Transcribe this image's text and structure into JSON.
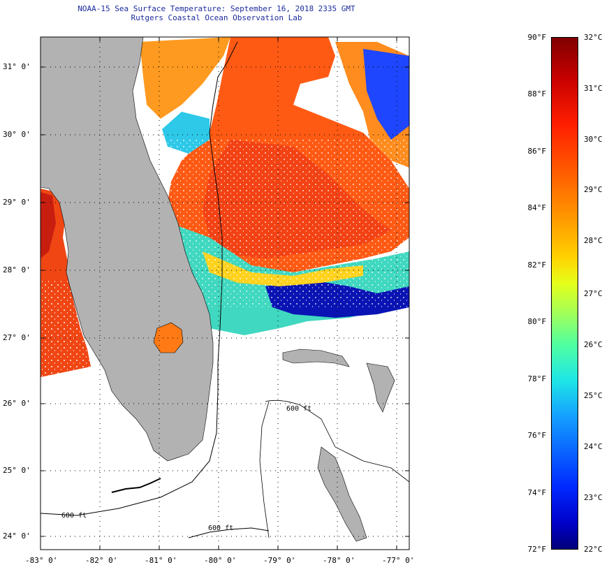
{
  "header": {
    "line1": "NOAA-15 Sea Surface Temperature:  September 16, 2018 2335 GMT",
    "line2": "Rutgers Coastal Ocean Observation Lab"
  },
  "map": {
    "lat_labels": [
      "31° 0'",
      "30° 0'",
      "29° 0'",
      "28° 0'",
      "27° 0'",
      "26° 0'",
      "25° 0'",
      "24° 0'"
    ],
    "lon_labels": [
      "-83° 0'",
      "-82° 0'",
      "-81° 0'",
      "-80° 0'",
      "-79° 0'",
      "-78° 0'",
      "-77° 0'"
    ],
    "contour_labels": [
      "600 ft",
      "600 ft",
      "600 ft"
    ],
    "colors": {
      "land": "#b2b2b2",
      "warm": "#ff5a14",
      "hot": "#e81a10",
      "cool": "#1e46ff",
      "cold": "#0a14b4",
      "mid": "#40e0d0"
    }
  },
  "colorbar": {
    "fahrenheit": [
      "90°F",
      "88°F",
      "86°F",
      "84°F",
      "82°F",
      "80°F",
      "78°F",
      "76°F",
      "74°F",
      "72°F"
    ],
    "celsius": [
      "32°C",
      "31°C",
      "30°C",
      "29°C",
      "28°C",
      "27°C",
      "26°C",
      "25°C",
      "24°C",
      "23°C",
      "22°C"
    ]
  }
}
